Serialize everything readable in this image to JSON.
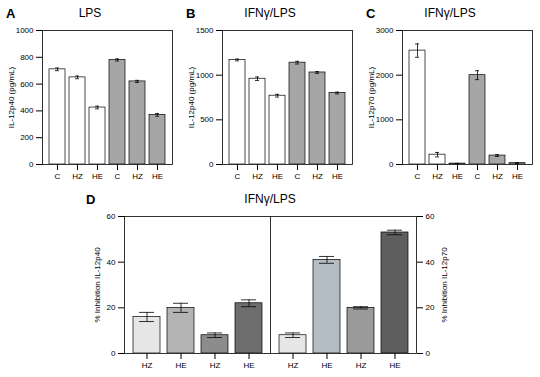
{
  "chart_data": [
    {
      "panel": "A",
      "type": "bar",
      "title": "LPS",
      "y_label": "IL-12p40 (pg/mL)",
      "categories": [
        "C",
        "HZ",
        "HE",
        "C",
        "HZ",
        "HE"
      ],
      "values": [
        710,
        650,
        425,
        780,
        620,
        370
      ],
      "errors": [
        10,
        10,
        10,
        8,
        8,
        10
      ],
      "colors": [
        "#ffffff",
        "#ffffff",
        "#ffffff",
        "#a6a6a6",
        "#a6a6a6",
        "#a6a6a6"
      ],
      "ylim": [
        0,
        1000
      ],
      "yticks": [
        0,
        200,
        400,
        600,
        800,
        1000
      ]
    },
    {
      "panel": "B",
      "type": "bar",
      "title": "IFNγ/LPS",
      "y_label": "IL-12p40 (pg/mL)",
      "categories": [
        "C",
        "HZ",
        "HE",
        "C",
        "HZ",
        "HE"
      ],
      "values": [
        1170,
        960,
        770,
        1140,
        1030,
        800
      ],
      "errors": [
        10,
        20,
        15,
        15,
        10,
        10
      ],
      "colors": [
        "#ffffff",
        "#ffffff",
        "#ffffff",
        "#a6a6a6",
        "#a6a6a6",
        "#a6a6a6"
      ],
      "ylim": [
        0,
        1500
      ],
      "yticks": [
        0,
        500,
        1000,
        1500
      ]
    },
    {
      "panel": "C",
      "type": "bar",
      "title": "IFNγ/LPS",
      "y_label": "IL-12p70 (pg/mL)",
      "categories": [
        "C",
        "HZ",
        "HE",
        "C",
        "HZ",
        "HE"
      ],
      "values": [
        2550,
        220,
        20,
        2000,
        200,
        30
      ],
      "errors": [
        150,
        50,
        5,
        100,
        20,
        5
      ],
      "colors": [
        "#ffffff",
        "#ffffff",
        "#ffffff",
        "#a6a6a6",
        "#a6a6a6",
        "#a6a6a6"
      ],
      "ylim": [
        0,
        3000
      ],
      "yticks": [
        0,
        1000,
        2000,
        3000
      ]
    },
    {
      "panel": "D",
      "type": "bar",
      "title": "IFNγ/LPS",
      "y_label": "% Inhibition IL-12p40",
      "y2_label": "% Inhibition IL-12p70",
      "categories": [
        "HZ",
        "HE",
        "HZ",
        "HE",
        "HZ",
        "HE",
        "HZ",
        "HE"
      ],
      "series": [
        {
          "values": [
            16,
            20,
            8,
            22,
            null,
            null,
            null,
            null
          ],
          "errors": [
            2,
            2,
            1,
            1.5,
            null,
            null,
            null,
            null
          ],
          "colors": [
            "#e6e6e6",
            "#b4b4b4",
            "#8c8c8c",
            "#6e6e6e",
            null,
            null,
            null,
            null
          ]
        },
        {
          "axis": "y2",
          "values": [
            null,
            null,
            null,
            null,
            8,
            41,
            20,
            53
          ],
          "errors": [
            null,
            null,
            null,
            null,
            1,
            1.5,
            0.5,
            1
          ],
          "colors": [
            null,
            null,
            null,
            null,
            "#e6e6e6",
            "#b4bcc4",
            "#9a9a9a",
            "#5e5e5e"
          ]
        }
      ],
      "ylim": [
        0,
        60
      ],
      "yticks": [
        0,
        20,
        40,
        60
      ],
      "y2lim": [
        0,
        60
      ],
      "y2ticks": [
        0,
        20,
        40,
        60
      ]
    }
  ]
}
